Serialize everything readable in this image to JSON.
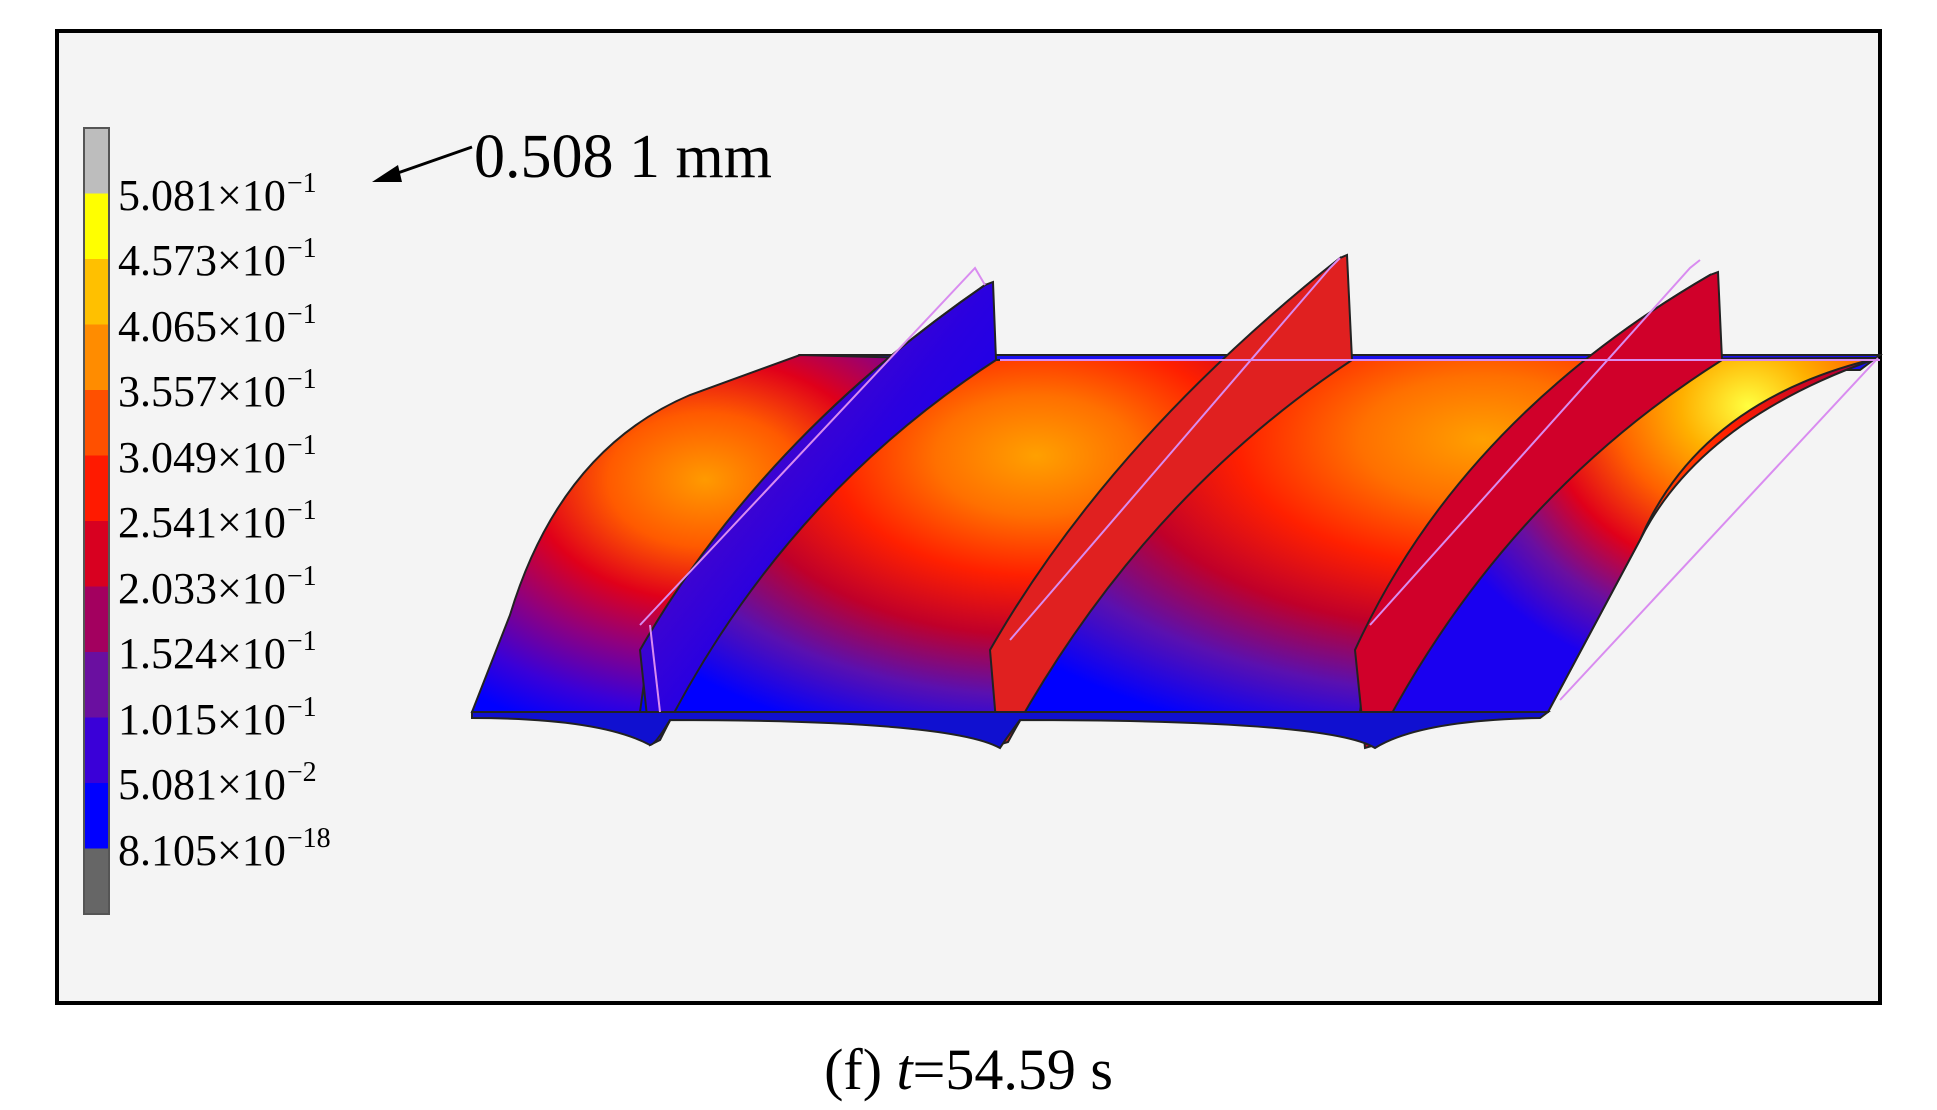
{
  "figure": {
    "caption_label": "(f)",
    "caption_var": "t",
    "caption_value": "=54.59 s",
    "max_callout": "0.508 1 mm"
  },
  "legend": {
    "levels": [
      {
        "mantissa": "5.081",
        "exp": "−1",
        "color": "#bdbdbd"
      },
      {
        "mantissa": "4.573",
        "exp": "−1",
        "color": "#ffff00"
      },
      {
        "mantissa": "4.065",
        "exp": "−1",
        "color": "#ffc000"
      },
      {
        "mantissa": "3.557",
        "exp": "−1",
        "color": "#ff8c00"
      },
      {
        "mantissa": "3.049",
        "exp": "−1",
        "color": "#ff5000"
      },
      {
        "mantissa": "2.541",
        "exp": "−1",
        "color": "#ff1a00"
      },
      {
        "mantissa": "2.033",
        "exp": "−1",
        "color": "#d80020"
      },
      {
        "mantissa": "1.524",
        "exp": "−1",
        "color": "#a3005f"
      },
      {
        "mantissa": "1.015",
        "exp": "−1",
        "color": "#6a0fa0"
      },
      {
        "mantissa": "5.081",
        "exp": "−2",
        "color": "#3a00d8"
      },
      {
        "mantissa": "8.105",
        "exp": "−18",
        "color": "#0000ff"
      }
    ],
    "bottom_color": "#666666",
    "times_sign": "×10"
  },
  "colors": {
    "background": "#f4f4f4",
    "outline": "#d98cf0"
  }
}
